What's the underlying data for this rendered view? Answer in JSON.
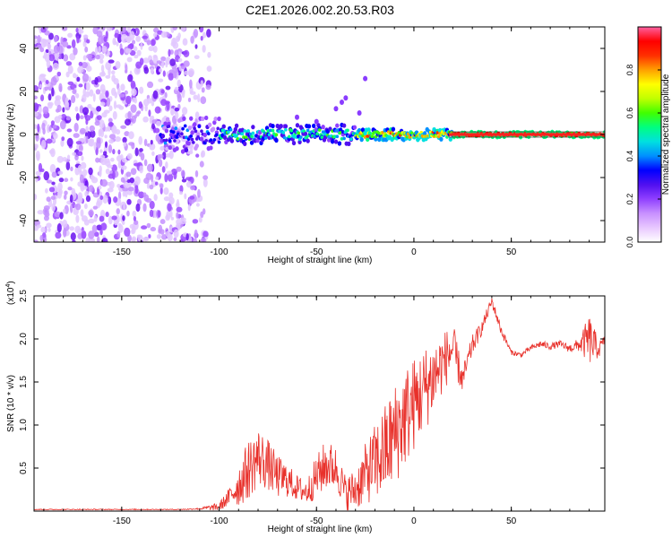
{
  "title": "C2E1.2026.002.20.53.R03",
  "chart_data": [
    {
      "type": "heatmap",
      "name": "spectrogram",
      "xlabel": "Height of straight line (km)",
      "ylabel": "Frequency (Hz)",
      "xlim": [
        -195,
        98
      ],
      "ylim": [
        -50,
        50
      ],
      "x_ticks": [
        "-150",
        "-100",
        "-50",
        "0",
        "50"
      ],
      "x_tick_values": [
        -150,
        -100,
        -50,
        0,
        50
      ],
      "y_ticks": [
        "-40",
        "-20",
        "0",
        "20",
        "40"
      ],
      "y_tick_values": [
        -40,
        -20,
        0,
        20,
        40
      ],
      "noise_region_km": [
        -195,
        -105
      ],
      "ridge_frequency_hz": 0,
      "colorbar": {
        "label": "Normalized spectral amplitude",
        "range": [
          0,
          1
        ],
        "ticks": [
          "0.0",
          "0.2",
          "0.4",
          "0.6",
          "0.8"
        ],
        "tick_values": [
          0,
          0.2,
          0.4,
          0.6,
          0.8
        ],
        "colors": [
          "#ffffff",
          "#e8c8ff",
          "#c890ff",
          "#9040ff",
          "#5010f0",
          "#0000ff",
          "#0090ff",
          "#00e0e0",
          "#00ff80",
          "#40ff00",
          "#c0ff00",
          "#ffff00",
          "#ffa000",
          "#ff3000",
          "#ff0000",
          "#ff60a0"
        ]
      }
    },
    {
      "type": "line",
      "name": "snr",
      "xlabel": "Height of straight line (km)",
      "ylabel": "SNR (10 * v/v)",
      "multiplier": "(x10",
      "multiplier_exp": "4",
      "multiplier_close": ")",
      "xlim": [
        -195,
        98
      ],
      "ylim": [
        0,
        2.5
      ],
      "x_ticks": [
        "-150",
        "-100",
        "-50",
        "0",
        "50"
      ],
      "x_tick_values": [
        -150,
        -100,
        -50,
        0,
        50
      ],
      "y_ticks": [
        "0.5",
        "1.0",
        "1.5",
        "2.0",
        "2.5"
      ],
      "y_tick_values": [
        0.5,
        1.0,
        1.5,
        2.0,
        2.5
      ],
      "color": "#e8302a",
      "envelope": {
        "x": [
          -195,
          -120,
          -110,
          -100,
          -95,
          -90,
          -85,
          -80,
          -75,
          -70,
          -65,
          -60,
          -55,
          -50,
          -45,
          -40,
          -35,
          -30,
          -25,
          -20,
          -15,
          -10,
          -5,
          0,
          5,
          10,
          15,
          20,
          25,
          30,
          35,
          40,
          45,
          50,
          55,
          60,
          65,
          70,
          75,
          80,
          85,
          90,
          95,
          98
        ],
        "y": [
          0.02,
          0.02,
          0.03,
          0.06,
          0.18,
          0.35,
          0.55,
          0.7,
          0.6,
          0.45,
          0.4,
          0.3,
          0.25,
          0.45,
          0.6,
          0.55,
          0.25,
          0.3,
          0.5,
          0.65,
          0.8,
          1.0,
          1.2,
          1.35,
          1.5,
          1.65,
          1.8,
          1.95,
          1.55,
          1.95,
          2.15,
          2.45,
          2.1,
          1.85,
          1.82,
          1.9,
          1.95,
          1.92,
          1.95,
          1.9,
          1.95,
          2.05,
          1.9,
          2.0
        ],
        "noise": [
          0.005,
          0.005,
          0.01,
          0.05,
          0.1,
          0.25,
          0.35,
          0.35,
          0.3,
          0.25,
          0.2,
          0.15,
          0.15,
          0.25,
          0.3,
          0.25,
          0.2,
          0.25,
          0.35,
          0.45,
          0.55,
          0.6,
          0.6,
          0.55,
          0.5,
          0.45,
          0.35,
          0.3,
          0.15,
          0.12,
          0.08,
          0.06,
          0.06,
          0.03,
          0.03,
          0.03,
          0.04,
          0.04,
          0.04,
          0.05,
          0.08,
          0.3,
          0.1,
          0.05
        ]
      }
    }
  ]
}
